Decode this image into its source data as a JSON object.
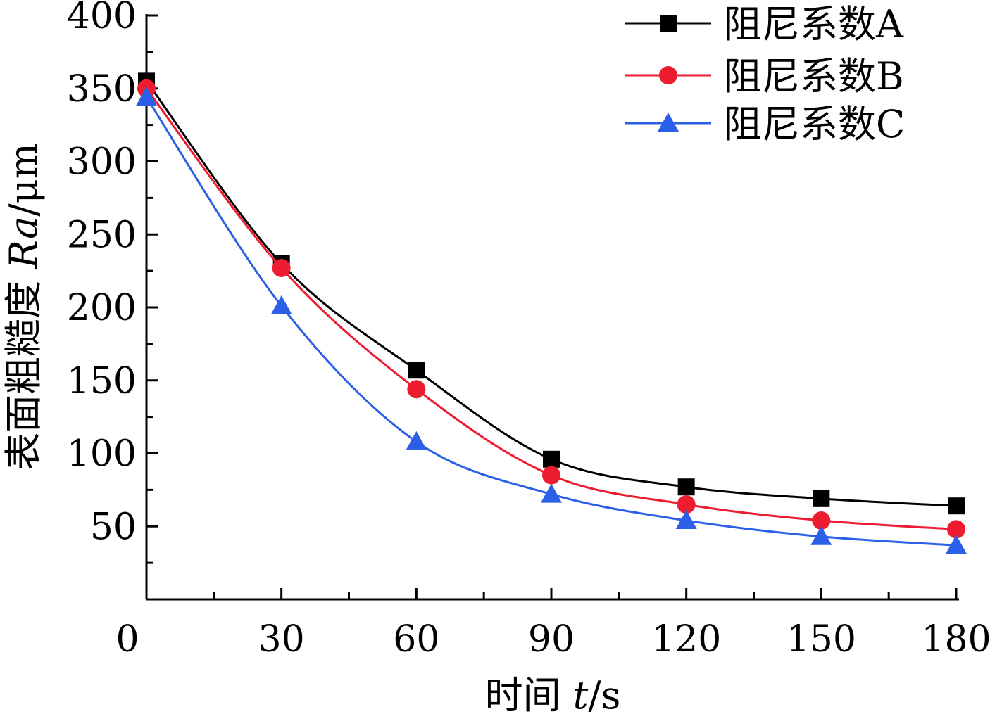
{
  "chart_data": {
    "type": "line",
    "title": "",
    "xlabel": {
      "prefix": "时间 ",
      "var": "t",
      "suffix": "/s"
    },
    "ylabel": {
      "prefix": "表面粗糙度 ",
      "var": "Ra",
      "suffix": "/μm"
    },
    "xlim": [
      0,
      180
    ],
    "ylim": [
      0,
      400
    ],
    "xticks": [
      0,
      30,
      60,
      90,
      120,
      150,
      180
    ],
    "yticks": [
      50,
      100,
      150,
      200,
      250,
      300,
      350,
      400
    ],
    "ytick_labels": [
      "50",
      "100",
      "150",
      "200",
      "250",
      "300",
      "350",
      "400"
    ],
    "xtick_labels": [
      "0",
      "30",
      "60",
      "90",
      "120",
      "150",
      "180"
    ],
    "grid": false,
    "legend_position": "top-right",
    "series": [
      {
        "name": "阻尼系数A",
        "color": "#000000",
        "marker": "square",
        "x": [
          0,
          30,
          60,
          90,
          120,
          150,
          180
        ],
        "y": [
          355,
          230,
          157,
          96,
          77,
          69,
          64
        ]
      },
      {
        "name": "阻尼系数B",
        "color": "#ee1c30",
        "marker": "circle",
        "x": [
          0,
          30,
          60,
          90,
          120,
          150,
          180
        ],
        "y": [
          350,
          227,
          144,
          85,
          65,
          54,
          48
        ]
      },
      {
        "name": "阻尼系数C",
        "color": "#2b5fe8",
        "marker": "triangle",
        "x": [
          0,
          30,
          60,
          90,
          120,
          150,
          180
        ],
        "y": [
          344,
          201,
          108,
          72,
          54,
          43,
          37
        ]
      }
    ]
  }
}
